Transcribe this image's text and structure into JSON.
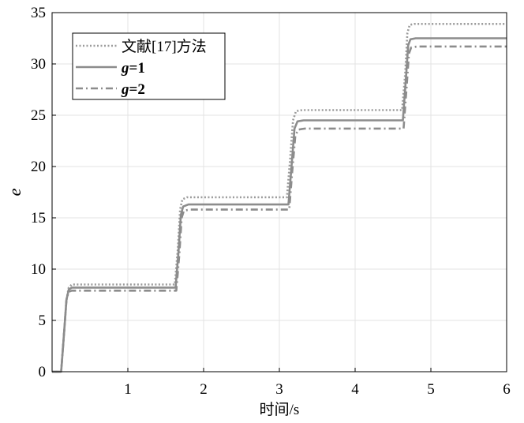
{
  "chart_data": {
    "type": "line",
    "title": "",
    "xlabel": "时间/s",
    "ylabel": "e",
    "xlim": [
      0,
      6
    ],
    "ylim": [
      0,
      35
    ],
    "xticks": [
      1,
      2,
      3,
      4,
      5,
      6
    ],
    "yticks": [
      0,
      5,
      10,
      15,
      20,
      25,
      30,
      35
    ],
    "grid": true,
    "legend_position": "top-left",
    "series": [
      {
        "name": "文献[17]方法",
        "style": "dotted",
        "color": "#9b9b9b",
        "x": [
          0,
          0.12,
          0.16,
          0.19,
          0.22,
          0.26,
          0.32,
          1.62,
          1.66,
          1.69,
          1.72,
          1.78,
          3.1,
          3.14,
          3.18,
          3.22,
          3.3,
          4.62,
          4.66,
          4.69,
          4.72,
          4.78,
          6
        ],
        "y": [
          0,
          0,
          4.0,
          7.0,
          8.2,
          8.5,
          8.5,
          8.5,
          12.0,
          15.8,
          16.8,
          17.0,
          17.0,
          20.5,
          24.5,
          25.4,
          25.5,
          25.5,
          29.0,
          33.0,
          33.8,
          33.9,
          33.9
        ]
      },
      {
        "name": "g=1",
        "style": "solid",
        "color": "#8c8c8c",
        "x": [
          0,
          0.12,
          0.16,
          0.19,
          0.22,
          0.26,
          0.32,
          1.63,
          1.67,
          1.7,
          1.73,
          1.8,
          3.12,
          3.16,
          3.2,
          3.24,
          3.32,
          4.63,
          4.67,
          4.7,
          4.73,
          4.8,
          6
        ],
        "y": [
          0,
          0,
          4.0,
          7.0,
          8.0,
          8.2,
          8.2,
          8.2,
          11.8,
          15.3,
          16.1,
          16.3,
          16.3,
          20.0,
          23.7,
          24.4,
          24.5,
          24.5,
          28.5,
          31.8,
          32.4,
          32.5,
          32.5
        ]
      },
      {
        "name": "g=2",
        "style": "dashdot",
        "color": "#8c8c8c",
        "x": [
          0,
          0.12,
          0.16,
          0.19,
          0.22,
          0.26,
          0.32,
          1.64,
          1.68,
          1.71,
          1.74,
          1.82,
          3.13,
          3.17,
          3.21,
          3.25,
          3.34,
          4.64,
          4.68,
          4.71,
          4.74,
          4.82,
          6
        ],
        "y": [
          0,
          0,
          4.0,
          7.0,
          7.8,
          7.9,
          7.9,
          7.9,
          11.5,
          15.0,
          15.7,
          15.8,
          15.8,
          19.5,
          23.0,
          23.6,
          23.7,
          23.7,
          27.8,
          31.0,
          31.6,
          31.7,
          31.7
        ]
      }
    ]
  }
}
